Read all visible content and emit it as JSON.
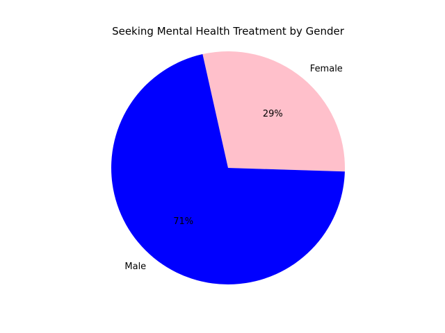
{
  "chart_data": {
    "type": "pie",
    "title": "Seeking Mental Health Treatment by Gender",
    "slices": [
      {
        "label": "Female",
        "value": 29,
        "pct_label": "29%",
        "color": "#ffc0cb"
      },
      {
        "label": "Male",
        "value": 71,
        "pct_label": "71%",
        "color": "#0000ff"
      }
    ],
    "start_angle_deg": -1.8,
    "direction": "counterclockwise"
  }
}
